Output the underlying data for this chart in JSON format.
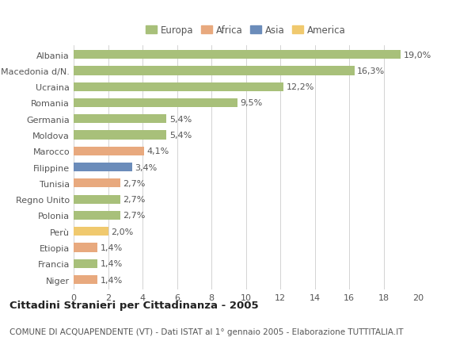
{
  "categories": [
    "Albania",
    "Macedonia d/N.",
    "Ucraina",
    "Romania",
    "Germania",
    "Moldova",
    "Marocco",
    "Filippine",
    "Tunisia",
    "Regno Unito",
    "Polonia",
    "Perù",
    "Etiopia",
    "Francia",
    "Niger"
  ],
  "values": [
    19.0,
    16.3,
    12.2,
    9.5,
    5.4,
    5.4,
    4.1,
    3.4,
    2.7,
    2.7,
    2.7,
    2.0,
    1.4,
    1.4,
    1.4
  ],
  "labels": [
    "19,0%",
    "16,3%",
    "12,2%",
    "9,5%",
    "5,4%",
    "5,4%",
    "4,1%",
    "3,4%",
    "2,7%",
    "2,7%",
    "2,7%",
    "2,0%",
    "1,4%",
    "1,4%",
    "1,4%"
  ],
  "continents": [
    "Europa",
    "Europa",
    "Europa",
    "Europa",
    "Europa",
    "Europa",
    "Africa",
    "Asia",
    "Africa",
    "Europa",
    "Europa",
    "America",
    "Africa",
    "Europa",
    "Africa"
  ],
  "colors": {
    "Europa": "#a8c07a",
    "Africa": "#e8a97e",
    "Asia": "#6b8cba",
    "America": "#f0c96e"
  },
  "legend_order": [
    "Europa",
    "Africa",
    "Asia",
    "America"
  ],
  "title": "Cittadini Stranieri per Cittadinanza - 2005",
  "subtitle": "COMUNE DI ACQUAPENDENTE (VT) - Dati ISTAT al 1° gennaio 2005 - Elaborazione TUTTITALIA.IT",
  "xlim": [
    0,
    20
  ],
  "xticks": [
    0,
    2,
    4,
    6,
    8,
    10,
    12,
    14,
    16,
    18,
    20
  ],
  "background_color": "#ffffff",
  "grid_color": "#cccccc",
  "bar_height": 0.55,
  "title_fontsize": 9.5,
  "subtitle_fontsize": 7.5,
  "tick_label_fontsize": 8,
  "value_label_fontsize": 8,
  "legend_fontsize": 8.5
}
